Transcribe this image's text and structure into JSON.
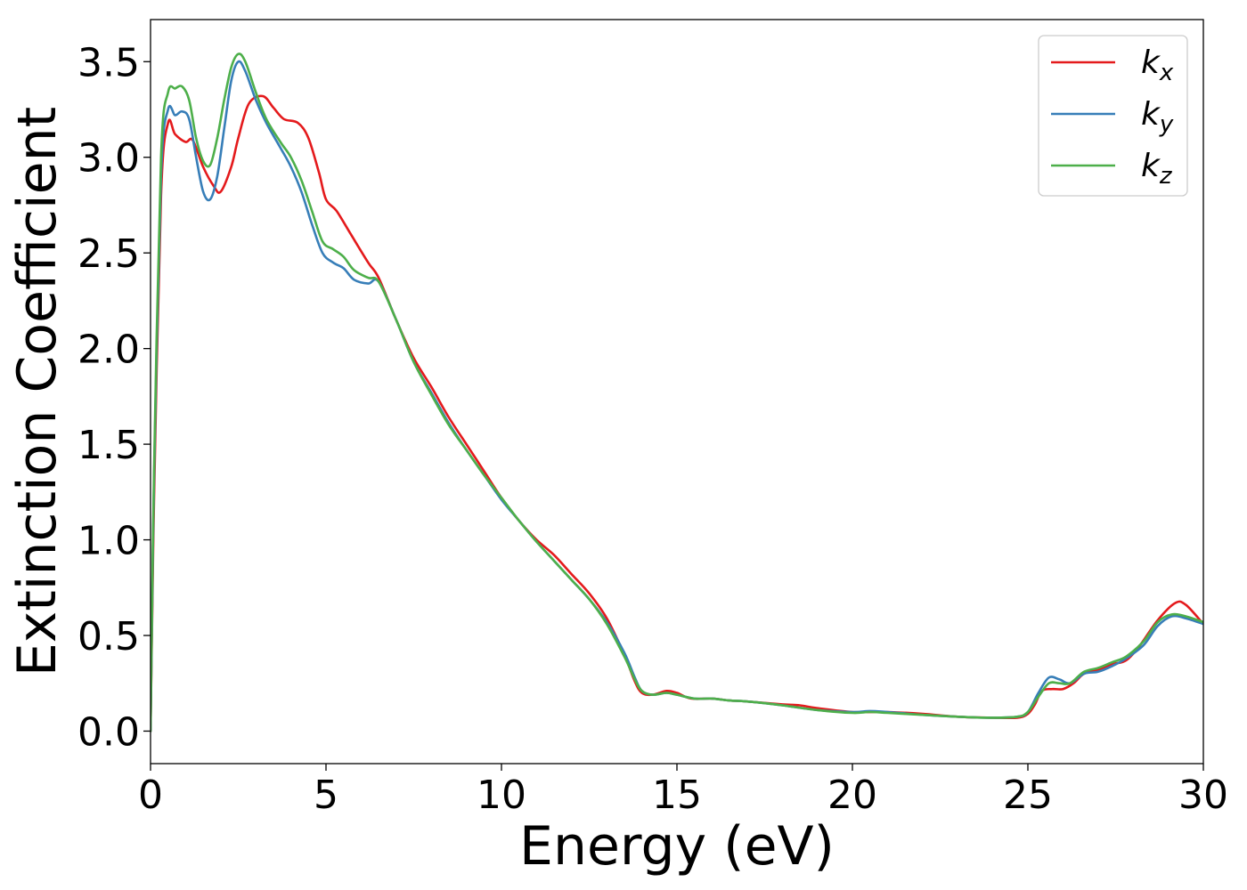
{
  "chart_data": {
    "type": "line",
    "title": "",
    "xlabel": "Energy (eV)",
    "ylabel": "Extinction Coefficient",
    "xlim": [
      0,
      30
    ],
    "ylim": [
      -0.17,
      3.72
    ],
    "xticks": [
      0,
      5,
      10,
      15,
      20,
      25,
      30
    ],
    "xtick_labels": [
      "0",
      "5",
      "10",
      "15",
      "20",
      "25",
      "30"
    ],
    "yticks": [
      0.0,
      0.5,
      1.0,
      1.5,
      2.0,
      2.5,
      3.0,
      3.5
    ],
    "ytick_labels": [
      "0.0",
      "0.5",
      "1.0",
      "1.5",
      "2.0",
      "2.5",
      "3.0",
      "3.5"
    ],
    "grid": false,
    "legend_position": "top-right",
    "series": [
      {
        "name": "kx",
        "label_main": "k",
        "label_sub": "x",
        "color": "#e41a1c",
        "points": [
          [
            0,
            0
          ],
          [
            0.1,
            1.2
          ],
          [
            0.3,
            2.8
          ],
          [
            0.5,
            3.18
          ],
          [
            0.7,
            3.12
          ],
          [
            1.0,
            3.08
          ],
          [
            1.2,
            3.09
          ],
          [
            1.5,
            2.95
          ],
          [
            1.8,
            2.85
          ],
          [
            2.0,
            2.82
          ],
          [
            2.3,
            2.95
          ],
          [
            2.5,
            3.1
          ],
          [
            2.8,
            3.28
          ],
          [
            3.2,
            3.32
          ],
          [
            3.5,
            3.26
          ],
          [
            3.8,
            3.2
          ],
          [
            4.2,
            3.18
          ],
          [
            4.5,
            3.1
          ],
          [
            4.8,
            2.92
          ],
          [
            5.0,
            2.78
          ],
          [
            5.3,
            2.72
          ],
          [
            5.7,
            2.6
          ],
          [
            6.2,
            2.45
          ],
          [
            6.5,
            2.37
          ],
          [
            7.0,
            2.15
          ],
          [
            7.5,
            1.95
          ],
          [
            8.0,
            1.8
          ],
          [
            8.5,
            1.64
          ],
          [
            9.0,
            1.5
          ],
          [
            9.5,
            1.36
          ],
          [
            10.0,
            1.22
          ],
          [
            10.5,
            1.1
          ],
          [
            11.0,
            1.0
          ],
          [
            11.5,
            0.92
          ],
          [
            12.0,
            0.82
          ],
          [
            12.5,
            0.72
          ],
          [
            13.0,
            0.59
          ],
          [
            13.5,
            0.4
          ],
          [
            13.8,
            0.26
          ],
          [
            14.0,
            0.2
          ],
          [
            14.3,
            0.19
          ],
          [
            14.7,
            0.21
          ],
          [
            15.0,
            0.2
          ],
          [
            15.4,
            0.17
          ],
          [
            16.0,
            0.17
          ],
          [
            16.5,
            0.16
          ],
          [
            17.0,
            0.155
          ],
          [
            18.0,
            0.14
          ],
          [
            18.5,
            0.135
          ],
          [
            19.0,
            0.12
          ],
          [
            20.0,
            0.1
          ],
          [
            21.0,
            0.1
          ],
          [
            22.0,
            0.09
          ],
          [
            23.0,
            0.075
          ],
          [
            24.0,
            0.07
          ],
          [
            24.7,
            0.07
          ],
          [
            25.0,
            0.09
          ],
          [
            25.2,
            0.14
          ],
          [
            25.4,
            0.21
          ],
          [
            25.7,
            0.22
          ],
          [
            26.0,
            0.22
          ],
          [
            26.3,
            0.25
          ],
          [
            26.6,
            0.3
          ],
          [
            27.0,
            0.32
          ],
          [
            27.4,
            0.35
          ],
          [
            27.8,
            0.37
          ],
          [
            28.2,
            0.45
          ],
          [
            28.7,
            0.58
          ],
          [
            29.2,
            0.67
          ],
          [
            29.5,
            0.66
          ],
          [
            30.0,
            0.56
          ]
        ]
      },
      {
        "name": "ky",
        "label_main": "k",
        "label_sub": "y",
        "color": "#377eb8",
        "points": [
          [
            0,
            0
          ],
          [
            0.1,
            1.3
          ],
          [
            0.3,
            2.9
          ],
          [
            0.5,
            3.25
          ],
          [
            0.7,
            3.22
          ],
          [
            0.9,
            3.24
          ],
          [
            1.1,
            3.2
          ],
          [
            1.3,
            3.0
          ],
          [
            1.5,
            2.82
          ],
          [
            1.7,
            2.78
          ],
          [
            1.9,
            2.9
          ],
          [
            2.1,
            3.15
          ],
          [
            2.3,
            3.4
          ],
          [
            2.5,
            3.5
          ],
          [
            2.7,
            3.45
          ],
          [
            3.0,
            3.3
          ],
          [
            3.3,
            3.18
          ],
          [
            3.7,
            3.05
          ],
          [
            4.0,
            2.95
          ],
          [
            4.3,
            2.82
          ],
          [
            4.6,
            2.65
          ],
          [
            4.9,
            2.5
          ],
          [
            5.2,
            2.45
          ],
          [
            5.5,
            2.42
          ],
          [
            5.8,
            2.36
          ],
          [
            6.2,
            2.34
          ],
          [
            6.5,
            2.35
          ],
          [
            7.0,
            2.15
          ],
          [
            7.5,
            1.93
          ],
          [
            8.0,
            1.77
          ],
          [
            8.5,
            1.61
          ],
          [
            9.0,
            1.47
          ],
          [
            9.5,
            1.34
          ],
          [
            10.0,
            1.21
          ],
          [
            10.5,
            1.1
          ],
          [
            11.0,
            0.99
          ],
          [
            11.5,
            0.89
          ],
          [
            12.0,
            0.79
          ],
          [
            12.5,
            0.69
          ],
          [
            13.0,
            0.57
          ],
          [
            13.5,
            0.41
          ],
          [
            13.8,
            0.28
          ],
          [
            14.0,
            0.21
          ],
          [
            14.3,
            0.19
          ],
          [
            14.7,
            0.2
          ],
          [
            15.0,
            0.19
          ],
          [
            15.5,
            0.17
          ],
          [
            16.0,
            0.17
          ],
          [
            16.5,
            0.16
          ],
          [
            17.0,
            0.155
          ],
          [
            18.0,
            0.135
          ],
          [
            19.0,
            0.11
          ],
          [
            20.0,
            0.1
          ],
          [
            20.5,
            0.105
          ],
          [
            21.0,
            0.1
          ],
          [
            22.0,
            0.085
          ],
          [
            23.0,
            0.075
          ],
          [
            24.0,
            0.07
          ],
          [
            24.7,
            0.075
          ],
          [
            25.0,
            0.1
          ],
          [
            25.3,
            0.2
          ],
          [
            25.6,
            0.28
          ],
          [
            25.9,
            0.27
          ],
          [
            26.2,
            0.25
          ],
          [
            26.6,
            0.3
          ],
          [
            27.0,
            0.31
          ],
          [
            27.4,
            0.34
          ],
          [
            27.8,
            0.38
          ],
          [
            28.3,
            0.45
          ],
          [
            28.7,
            0.55
          ],
          [
            29.1,
            0.6
          ],
          [
            29.5,
            0.59
          ],
          [
            30.0,
            0.56
          ]
        ]
      },
      {
        "name": "kz",
        "label_main": "k",
        "label_sub": "z",
        "color": "#4daf4a",
        "points": [
          [
            0,
            0
          ],
          [
            0.1,
            1.35
          ],
          [
            0.3,
            3.0
          ],
          [
            0.5,
            3.34
          ],
          [
            0.7,
            3.36
          ],
          [
            0.9,
            3.37
          ],
          [
            1.1,
            3.3
          ],
          [
            1.3,
            3.1
          ],
          [
            1.5,
            2.98
          ],
          [
            1.7,
            2.96
          ],
          [
            1.9,
            3.1
          ],
          [
            2.1,
            3.3
          ],
          [
            2.3,
            3.47
          ],
          [
            2.5,
            3.54
          ],
          [
            2.7,
            3.5
          ],
          [
            3.0,
            3.34
          ],
          [
            3.3,
            3.2
          ],
          [
            3.7,
            3.08
          ],
          [
            4.0,
            3.0
          ],
          [
            4.3,
            2.88
          ],
          [
            4.6,
            2.72
          ],
          [
            4.9,
            2.56
          ],
          [
            5.2,
            2.52
          ],
          [
            5.5,
            2.48
          ],
          [
            5.8,
            2.41
          ],
          [
            6.2,
            2.37
          ],
          [
            6.5,
            2.35
          ],
          [
            7.0,
            2.15
          ],
          [
            7.5,
            1.93
          ],
          [
            8.0,
            1.76
          ],
          [
            8.5,
            1.6
          ],
          [
            9.0,
            1.47
          ],
          [
            9.5,
            1.34
          ],
          [
            10.0,
            1.22
          ],
          [
            10.5,
            1.1
          ],
          [
            11.0,
            0.99
          ],
          [
            11.5,
            0.89
          ],
          [
            12.0,
            0.79
          ],
          [
            12.5,
            0.69
          ],
          [
            13.0,
            0.56
          ],
          [
            13.5,
            0.39
          ],
          [
            13.8,
            0.27
          ],
          [
            14.0,
            0.21
          ],
          [
            14.3,
            0.19
          ],
          [
            14.7,
            0.2
          ],
          [
            15.0,
            0.19
          ],
          [
            15.5,
            0.17
          ],
          [
            16.0,
            0.17
          ],
          [
            16.5,
            0.16
          ],
          [
            17.0,
            0.155
          ],
          [
            18.0,
            0.135
          ],
          [
            19.0,
            0.11
          ],
          [
            20.0,
            0.095
          ],
          [
            20.5,
            0.1
          ],
          [
            21.0,
            0.095
          ],
          [
            22.0,
            0.085
          ],
          [
            23.0,
            0.075
          ],
          [
            24.0,
            0.07
          ],
          [
            24.7,
            0.075
          ],
          [
            25.0,
            0.1
          ],
          [
            25.3,
            0.18
          ],
          [
            25.6,
            0.25
          ],
          [
            25.9,
            0.25
          ],
          [
            26.2,
            0.25
          ],
          [
            26.6,
            0.31
          ],
          [
            27.0,
            0.33
          ],
          [
            27.4,
            0.36
          ],
          [
            27.8,
            0.39
          ],
          [
            28.3,
            0.47
          ],
          [
            28.7,
            0.57
          ],
          [
            29.1,
            0.61
          ],
          [
            29.5,
            0.6
          ],
          [
            30.0,
            0.57
          ]
        ]
      }
    ]
  }
}
